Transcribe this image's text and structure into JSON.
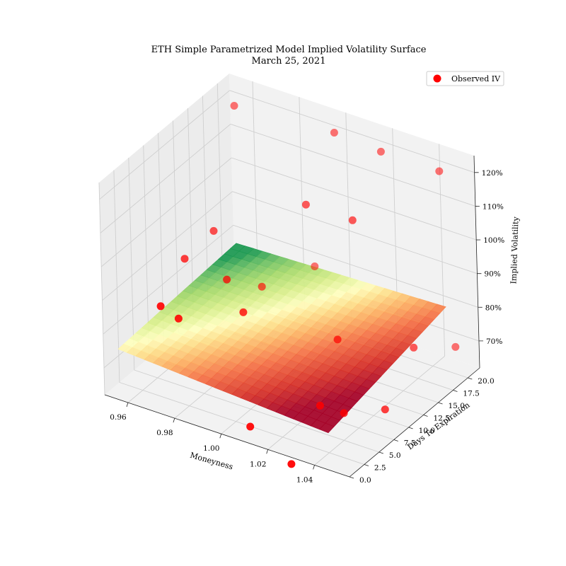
{
  "chart_data": {
    "type": "surface3d",
    "title": "ETH Simple Parametrized Model Implied Volatility Surface",
    "subtitle": "March 25, 2021",
    "xlabel": "Moneyness",
    "ylabel": "Days To Expiration",
    "zlabel": "Implied Volatility",
    "x_ticks": [
      "0.96",
      "0.98",
      "1.00",
      "1.02",
      "1.04"
    ],
    "y_ticks": [
      "0.0",
      "2.5",
      "5.0",
      "7.5",
      "10.0",
      "12.5",
      "15.0",
      "17.5",
      "20.0"
    ],
    "z_ticks": [
      "70%",
      "80%",
      "90%",
      "100%",
      "110%",
      "120%"
    ],
    "xlim": [
      0.95,
      1.055
    ],
    "ylim": [
      0,
      22
    ],
    "zlim": [
      62,
      125
    ],
    "grid": true,
    "legend": {
      "position": "top-right",
      "entries": [
        "Observed IV"
      ]
    },
    "colormap": "RdYlGn",
    "surface": {
      "x_range": [
        0.955,
        1.045
      ],
      "y_range": [
        0.5,
        20.5
      ],
      "description_values": {
        "z_at_x_min_y_min": 76,
        "z_at_x_max_y_min": 72,
        "z_at_x_min_y_max": 78,
        "z_at_x_max_y_max": 80
      }
    },
    "series": [
      {
        "name": "Observed IV",
        "color": "#ff0000",
        "points": [
          {
            "x": 0.957,
            "y": 20.0,
            "z": 120
          },
          {
            "x": 0.965,
            "y": 13.0,
            "z": 95
          },
          {
            "x": 0.978,
            "y": 10.0,
            "z": 88
          },
          {
            "x": 1.0,
            "y": 20.0,
            "z": 122
          },
          {
            "x": 1.0,
            "y": 15.0,
            "z": 108
          },
          {
            "x": 1.02,
            "y": 20.0,
            "z": 121
          },
          {
            "x": 1.02,
            "y": 15.0,
            "z": 108
          },
          {
            "x": 1.045,
            "y": 20.0,
            "z": 121
          },
          {
            "x": 0.96,
            "y": 10.0,
            "z": 90
          },
          {
            "x": 0.97,
            "y": 2.0,
            "z": 90
          },
          {
            "x": 0.975,
            "y": 3.0,
            "z": 86
          },
          {
            "x": 0.99,
            "y": 8.0,
            "z": 84
          },
          {
            "x": 0.98,
            "y": 15.0,
            "z": 79
          },
          {
            "x": 0.99,
            "y": 20.0,
            "z": 80
          },
          {
            "x": 1.02,
            "y": 12.0,
            "z": 77
          },
          {
            "x": 1.045,
            "y": 15.0,
            "z": 76
          },
          {
            "x": 1.05,
            "y": 20.0,
            "z": 70
          },
          {
            "x": 1.03,
            "y": 5.0,
            "z": 70
          },
          {
            "x": 1.035,
            "y": 7.0,
            "z": 66
          },
          {
            "x": 1.045,
            "y": 10.0,
            "z": 65
          },
          {
            "x": 1.01,
            "y": 1.0,
            "z": 65
          },
          {
            "x": 1.03,
            "y": 0.0,
            "z": 60
          }
        ]
      }
    ]
  }
}
